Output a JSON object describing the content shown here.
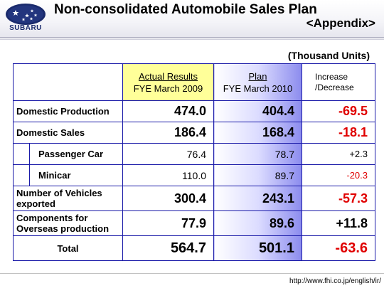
{
  "brand": {
    "name": "SUBARU"
  },
  "title": "Non-consolidated Automobile Sales Plan",
  "subtitle": "<Appendix>",
  "units": "(Thousand Units)",
  "table": {
    "headers": {
      "actual_line1": "Actual Results",
      "actual_line2": "FYE March 2009",
      "plan_line1": "Plan",
      "plan_line2": "FYE March 2010",
      "inc_line1": "Increase",
      "inc_line2": "/Decrease"
    },
    "rows": [
      {
        "label": "Domestic Production",
        "actual": "474.0",
        "plan": "404.4",
        "change": "-69.5"
      },
      {
        "label": "Domestic Sales",
        "actual": "186.4",
        "plan": "168.4",
        "change": "-18.1"
      },
      {
        "label": "Passenger Car",
        "actual": "76.4",
        "plan": "78.7",
        "change": "+2.3"
      },
      {
        "label": "Minicar",
        "actual": "110.0",
        "plan": "89.7",
        "change": "-20.3"
      },
      {
        "label_line1": "Number of Vehicles",
        "label_line2": "exported",
        "actual": "300.4",
        "plan": "243.1",
        "change": "-57.3"
      },
      {
        "label_line1": "Components for",
        "label_line2": "Overseas production",
        "actual": "77.9",
        "plan": "89.6",
        "change": "+11.8"
      },
      {
        "label": "Total",
        "actual": "564.7",
        "plan": "501.1",
        "change": "-63.6"
      }
    ]
  },
  "footer": {
    "url": "http://www.fhi.co.jp/english/ir/"
  },
  "colors": {
    "negative": "#e00000",
    "border": "#1a1aa8",
    "actual_header_bg": "#ffff99",
    "plan_gradient_end": "#8c8cee"
  }
}
